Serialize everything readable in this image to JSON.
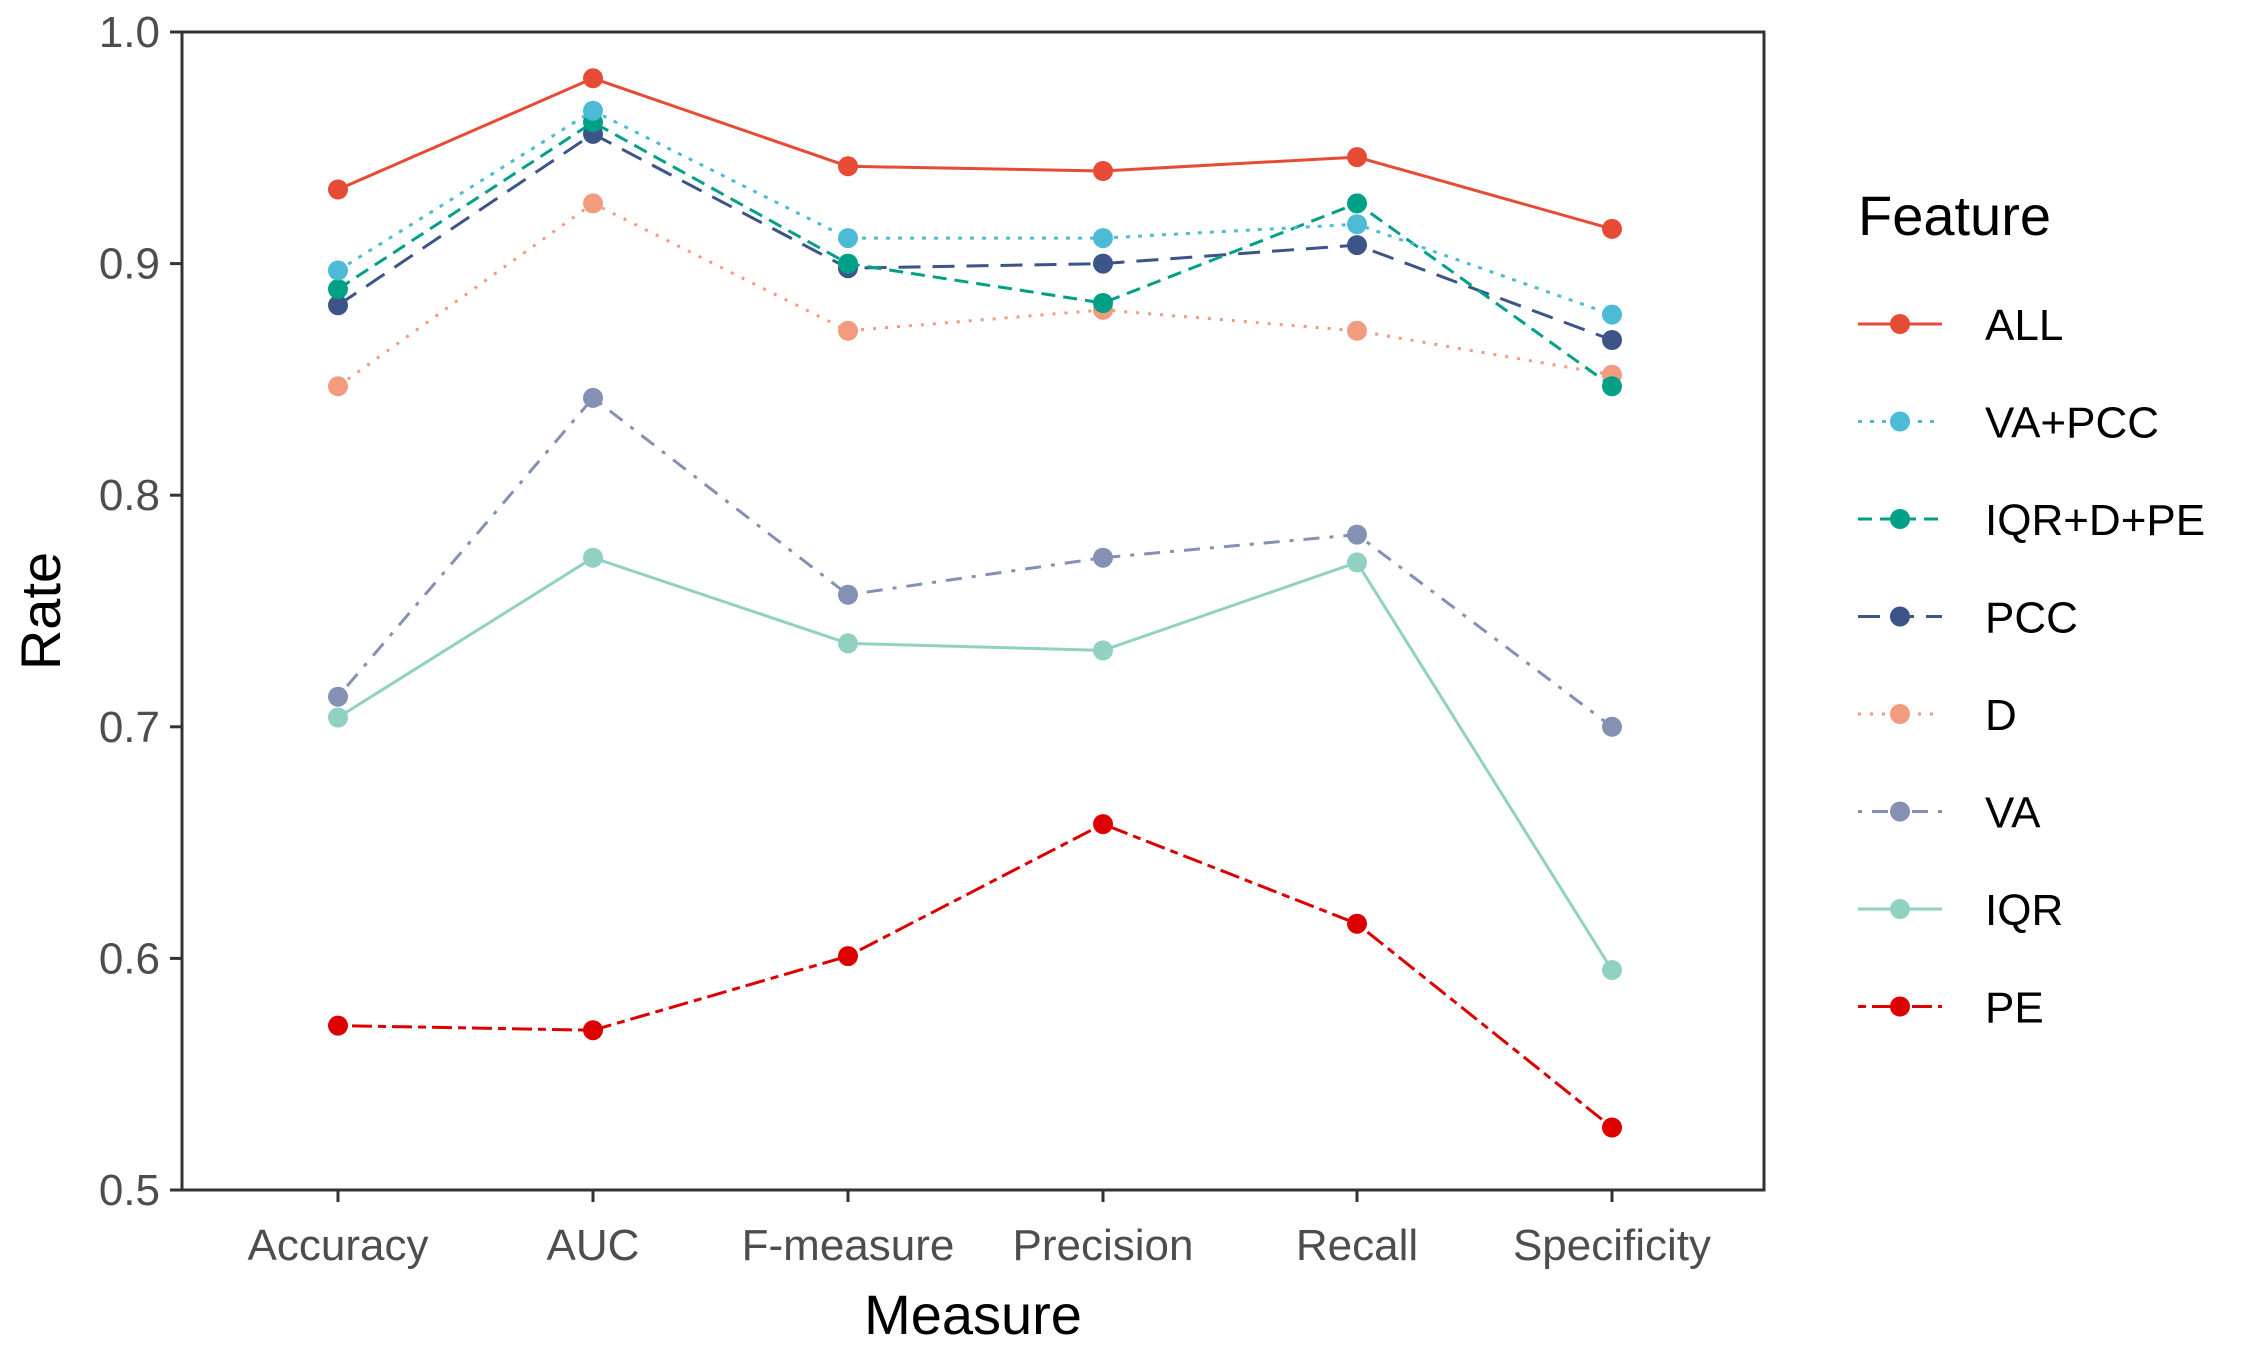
{
  "chart_data": {
    "type": "line",
    "title": "",
    "xlabel": "Measure",
    "ylabel": "Rate",
    "categories": [
      "Accuracy",
      "AUC",
      "F-measure",
      "Precision",
      "Recall",
      "Specificity"
    ],
    "ylim": [
      0.5,
      1.0
    ],
    "yticks": [
      0.5,
      0.6,
      0.7,
      0.8,
      0.9,
      1.0
    ],
    "ytick_labels": [
      "0.5",
      "0.6",
      "0.7",
      "0.8",
      "0.9",
      "1.0"
    ],
    "grid": false,
    "legend": {
      "title": "Feature",
      "position": "right"
    },
    "series": [
      {
        "name": "ALL",
        "color": "#E64B35",
        "dash": "solid",
        "values": [
          0.932,
          0.98,
          0.942,
          0.94,
          0.946,
          0.915
        ]
      },
      {
        "name": "VA+PCC",
        "color": "#4DBBD5",
        "dash": "dotted",
        "values": [
          0.897,
          0.966,
          0.911,
          0.911,
          0.917,
          0.878
        ]
      },
      {
        "name": "IQR+D+PE",
        "color": "#00A087",
        "dash": "dashed",
        "values": [
          0.889,
          0.961,
          0.9,
          0.883,
          0.926,
          0.847
        ]
      },
      {
        "name": "PCC",
        "color": "#3C5488",
        "dash": "longdash",
        "values": [
          0.882,
          0.956,
          0.898,
          0.9,
          0.908,
          0.867
        ]
      },
      {
        "name": "D",
        "color": "#F39B7F",
        "dash": "dot",
        "values": [
          0.847,
          0.926,
          0.871,
          0.88,
          0.871,
          0.852
        ]
      },
      {
        "name": "VA",
        "color": "#8491B4",
        "dash": "dotdash",
        "values": [
          0.713,
          0.842,
          0.757,
          0.773,
          0.783,
          0.7
        ]
      },
      {
        "name": "IQR",
        "color": "#91D1C2",
        "dash": "solid",
        "values": [
          0.704,
          0.773,
          0.736,
          0.733,
          0.771,
          0.595
        ]
      },
      {
        "name": "PE",
        "color": "#DC0000",
        "dash": "twodash",
        "values": [
          0.571,
          0.569,
          0.601,
          0.658,
          0.615,
          0.527
        ]
      }
    ]
  }
}
